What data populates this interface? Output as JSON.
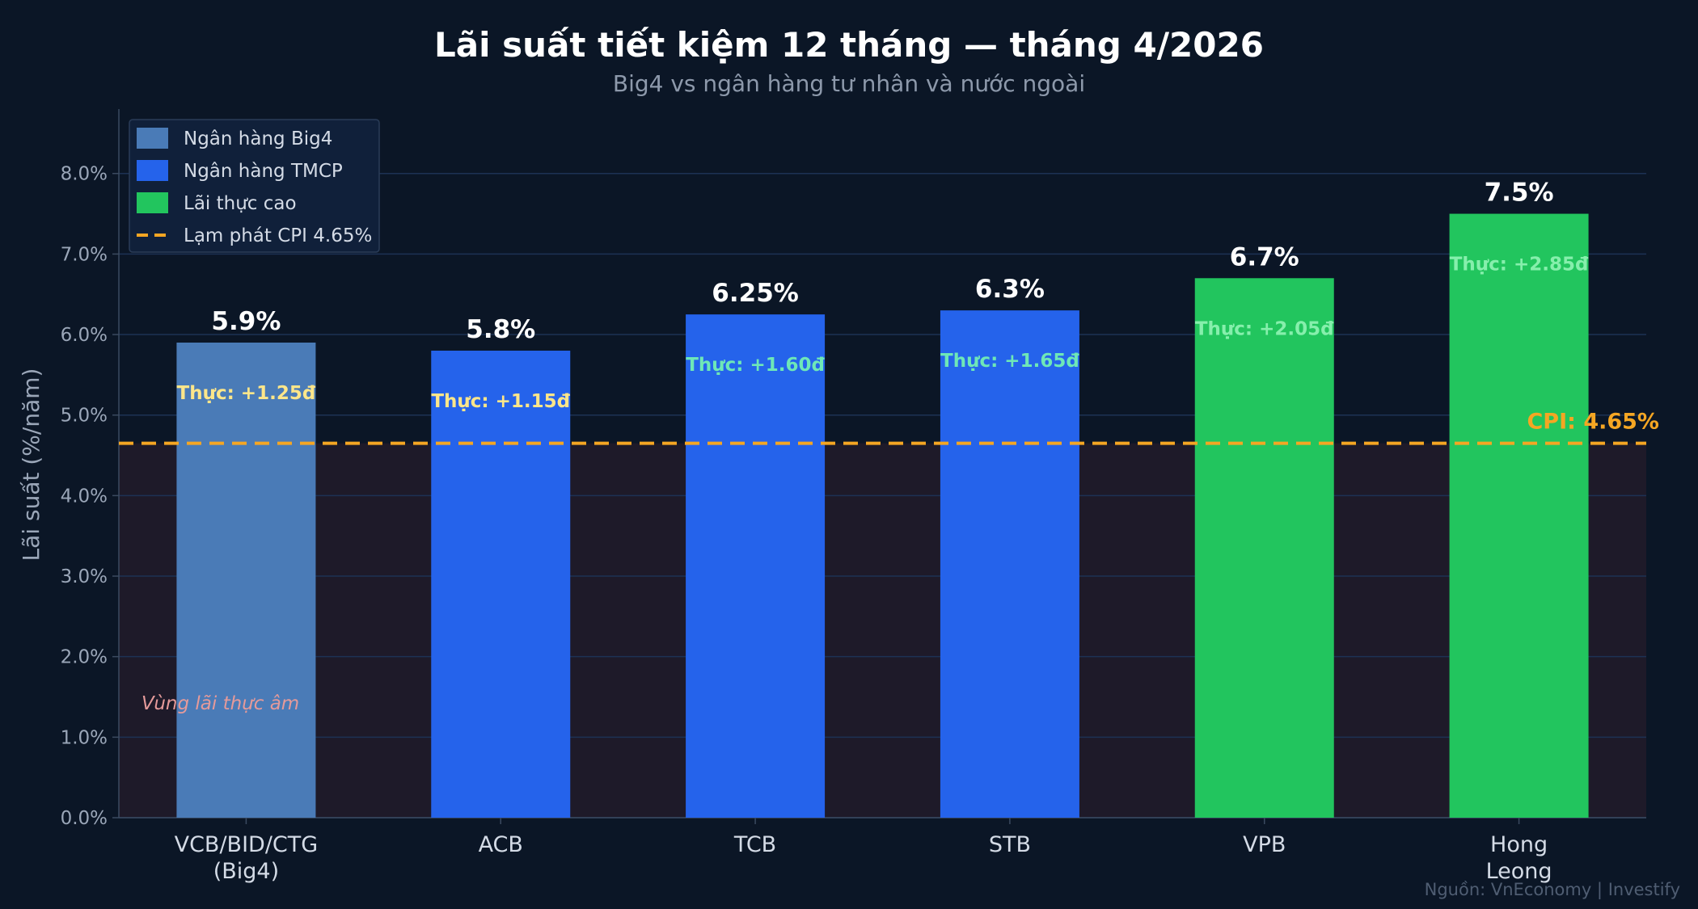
{
  "chart_data": {
    "type": "bar",
    "title": "Lãi suất tiết kiệm 12 tháng — tháng 4/2026",
    "subtitle": "Big4 vs ngân hàng tư nhân và nước ngoài",
    "ylabel": "Lãi suất (%/năm)",
    "ylim": [
      0,
      8.8
    ],
    "yticks": [
      0,
      1,
      2,
      3,
      4,
      5,
      6,
      7,
      8
    ],
    "ytick_labels": [
      "0.0%",
      "1.0%",
      "2.0%",
      "3.0%",
      "4.0%",
      "5.0%",
      "6.0%",
      "7.0%",
      "8.0%"
    ],
    "grid": "horizontal",
    "legend_position": "top-left",
    "categories": [
      [
        "VCB/BID/CTG",
        "(Big4)"
      ],
      [
        "ACB"
      ],
      [
        "TCB"
      ],
      [
        "STB"
      ],
      [
        "VPB"
      ],
      [
        "Hong",
        "Leong"
      ]
    ],
    "values": [
      5.9,
      5.8,
      6.25,
      6.3,
      6.7,
      7.5
    ],
    "value_labels": [
      "5.9%",
      "5.8%",
      "6.25%",
      "6.3%",
      "6.7%",
      "7.5%"
    ],
    "real_labels": [
      "Thực: +1.25đ",
      "Thực: +1.15đ",
      "Thực: +1.60đ",
      "Thực: +1.65đ",
      "Thực: +2.05đ",
      "Thực: +2.85đ"
    ],
    "groups": [
      "big4",
      "tmcp",
      "tmcp",
      "tmcp",
      "high",
      "high"
    ],
    "colors": {
      "big4": "#4a7bb7",
      "tmcp": "#2563eb",
      "high": "#22c55e",
      "cpi": "#f5a623",
      "negative_zone": "#1e1a29",
      "real_big4_tmcp_low": "#fde68a",
      "real_tmcp": "#6ee7b7",
      "real_high": "#86efac"
    },
    "real_label_colors": [
      "#fde68a",
      "#fde68a",
      "#6ee7b7",
      "#6ee7b7",
      "#86efac",
      "#86efac"
    ],
    "cpi": {
      "value": 4.65,
      "label": "CPI: 4.65%"
    },
    "legend": [
      {
        "label": "Ngân hàng Big4",
        "kind": "box",
        "color": "#4a7bb7"
      },
      {
        "label": "Ngân hàng TMCP",
        "kind": "box",
        "color": "#2563eb"
      },
      {
        "label": "Lãi thực cao",
        "kind": "box",
        "color": "#22c55e"
      },
      {
        "label": "Lạm phát CPI 4.65%",
        "kind": "dash",
        "color": "#f5a623"
      }
    ],
    "zone_label": "Vùng lãi thực âm",
    "source": "Nguồn: VnEconomy | Investify"
  }
}
